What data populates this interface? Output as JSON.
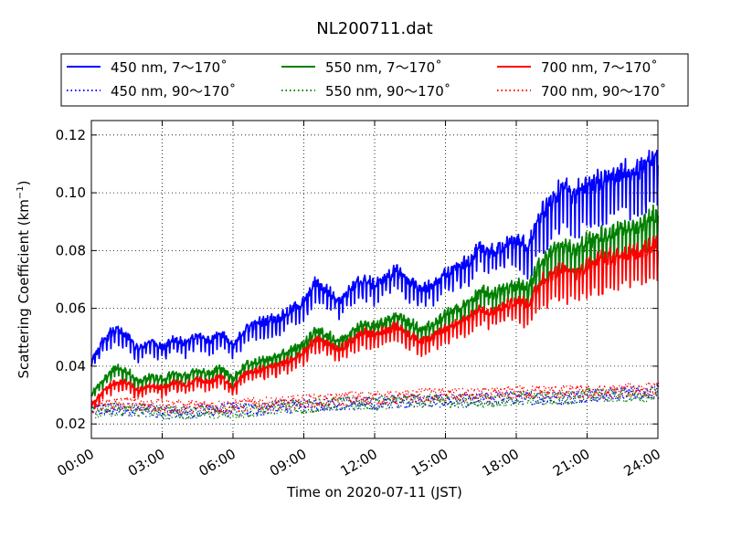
{
  "chart_data": {
    "type": "line",
    "title": "NL200711.dat",
    "xlabel": "Time on 2020-07-11 (JST)",
    "ylabel": "Scattering Coefficient (km",
    "ylabel_sup": "−1",
    "ylabel_close": ")",
    "x_unit": "hours",
    "xlim": [
      0,
      24
    ],
    "ylim": [
      0.015,
      0.125
    ],
    "grid": true,
    "legend_position": "top, above plot, 3 columns",
    "x_ticks": [
      {
        "value": 0,
        "label": "00:00"
      },
      {
        "value": 3,
        "label": "03:00"
      },
      {
        "value": 6,
        "label": "06:00"
      },
      {
        "value": 9,
        "label": "09:00"
      },
      {
        "value": 12,
        "label": "12:00"
      },
      {
        "value": 15,
        "label": "15:00"
      },
      {
        "value": 18,
        "label": "18:00"
      },
      {
        "value": 21,
        "label": "21:00"
      },
      {
        "value": 24,
        "label": "24:00"
      }
    ],
    "y_ticks": [
      {
        "value": 0.02,
        "label": "0.02"
      },
      {
        "value": 0.04,
        "label": "0.04"
      },
      {
        "value": 0.06,
        "label": "0.06"
      },
      {
        "value": 0.08,
        "label": "0.08"
      },
      {
        "value": 0.1,
        "label": "0.10"
      },
      {
        "value": 0.12,
        "label": "0.12"
      }
    ],
    "series": [
      {
        "name": "450 nm, 7～170˚",
        "color": "#0000ff",
        "style": "solid",
        "x": [
          0,
          0.5,
          1,
          1.5,
          2,
          2.5,
          3,
          3.5,
          4,
          4.5,
          5,
          5.5,
          6,
          6.5,
          7,
          7.5,
          8,
          8.5,
          9,
          9.5,
          10,
          10.5,
          11,
          11.5,
          12,
          12.5,
          13,
          13.5,
          14,
          14.5,
          15,
          15.5,
          16,
          16.5,
          17,
          17.5,
          18,
          18.5,
          19,
          19.5,
          20,
          20.5,
          21,
          21.5,
          22,
          22.5,
          23,
          23.5,
          24
        ],
        "y": [
          0.041,
          0.048,
          0.052,
          0.05,
          0.045,
          0.048,
          0.046,
          0.049,
          0.047,
          0.05,
          0.048,
          0.051,
          0.046,
          0.052,
          0.054,
          0.055,
          0.056,
          0.059,
          0.061,
          0.068,
          0.065,
          0.062,
          0.066,
          0.069,
          0.067,
          0.07,
          0.072,
          0.068,
          0.066,
          0.067,
          0.071,
          0.073,
          0.075,
          0.08,
          0.078,
          0.081,
          0.082,
          0.079,
          0.09,
          0.095,
          0.1,
          0.097,
          0.1,
          0.102,
          0.103,
          0.105,
          0.104,
          0.108,
          0.11
        ]
      },
      {
        "name": "550 nm, 7～170˚",
        "color": "#008000",
        "style": "solid",
        "x": [
          0,
          0.5,
          1,
          1.5,
          2,
          2.5,
          3,
          3.5,
          4,
          4.5,
          5,
          5.5,
          6,
          6.5,
          7,
          7.5,
          8,
          8.5,
          9,
          9.5,
          10,
          10.5,
          11,
          11.5,
          12,
          12.5,
          13,
          13.5,
          14,
          14.5,
          15,
          15.5,
          16,
          16.5,
          17,
          17.5,
          18,
          18.5,
          19,
          19.5,
          20,
          20.5,
          21,
          21.5,
          22,
          22.5,
          23,
          23.5,
          24
        ],
        "y": [
          0.03,
          0.035,
          0.039,
          0.038,
          0.034,
          0.036,
          0.035,
          0.037,
          0.036,
          0.038,
          0.037,
          0.039,
          0.035,
          0.04,
          0.041,
          0.042,
          0.043,
          0.045,
          0.047,
          0.052,
          0.05,
          0.048,
          0.051,
          0.054,
          0.053,
          0.055,
          0.057,
          0.054,
          0.052,
          0.054,
          0.057,
          0.059,
          0.061,
          0.065,
          0.064,
          0.066,
          0.067,
          0.065,
          0.074,
          0.078,
          0.08,
          0.078,
          0.081,
          0.083,
          0.084,
          0.086,
          0.085,
          0.088,
          0.09
        ]
      },
      {
        "name": "700 nm, 7～170˚",
        "color": "#ff0000",
        "style": "solid",
        "x": [
          0,
          0.5,
          1,
          1.5,
          2,
          2.5,
          3,
          3.5,
          4,
          4.5,
          5,
          5.5,
          6,
          6.5,
          7,
          7.5,
          8,
          8.5,
          9,
          9.5,
          10,
          10.5,
          11,
          11.5,
          12,
          12.5,
          13,
          13.5,
          14,
          14.5,
          15,
          15.5,
          16,
          16.5,
          17,
          17.5,
          18,
          18.5,
          19,
          19.5,
          20,
          20.5,
          21,
          21.5,
          22,
          22.5,
          23,
          23.5,
          24
        ],
        "y": [
          0.026,
          0.031,
          0.034,
          0.034,
          0.031,
          0.033,
          0.032,
          0.034,
          0.033,
          0.035,
          0.034,
          0.036,
          0.032,
          0.037,
          0.038,
          0.039,
          0.04,
          0.042,
          0.044,
          0.049,
          0.047,
          0.045,
          0.048,
          0.051,
          0.05,
          0.052,
          0.053,
          0.05,
          0.048,
          0.05,
          0.052,
          0.054,
          0.056,
          0.059,
          0.058,
          0.06,
          0.061,
          0.06,
          0.067,
          0.07,
          0.072,
          0.07,
          0.073,
          0.075,
          0.076,
          0.077,
          0.077,
          0.079,
          0.081
        ]
      },
      {
        "name": "450 nm, 90～170˚",
        "color": "#0000ff",
        "style": "dotted",
        "x": [
          0,
          1,
          2,
          3,
          4,
          5,
          6,
          7,
          8,
          9,
          10,
          11,
          12,
          13,
          14,
          15,
          16,
          17,
          18,
          19,
          20,
          21,
          22,
          23,
          24
        ],
        "y": [
          0.025,
          0.025,
          0.025,
          0.024,
          0.024,
          0.025,
          0.025,
          0.025,
          0.026,
          0.026,
          0.027,
          0.027,
          0.027,
          0.028,
          0.028,
          0.028,
          0.028,
          0.029,
          0.029,
          0.029,
          0.029,
          0.03,
          0.03,
          0.031,
          0.031
        ]
      },
      {
        "name": "550 nm, 90～170˚",
        "color": "#008000",
        "style": "dotted",
        "x": [
          0,
          1,
          2,
          3,
          4,
          5,
          6,
          7,
          8,
          9,
          10,
          11,
          12,
          13,
          14,
          15,
          16,
          17,
          18,
          19,
          20,
          21,
          22,
          23,
          24
        ],
        "y": [
          0.024,
          0.025,
          0.025,
          0.024,
          0.024,
          0.024,
          0.024,
          0.025,
          0.026,
          0.026,
          0.027,
          0.027,
          0.027,
          0.028,
          0.028,
          0.028,
          0.028,
          0.028,
          0.029,
          0.029,
          0.029,
          0.03,
          0.03,
          0.03,
          0.03
        ]
      },
      {
        "name": "700 nm, 90～170˚",
        "color": "#ff0000",
        "style": "dotted",
        "x": [
          0,
          1,
          2,
          3,
          4,
          5,
          6,
          7,
          8,
          9,
          10,
          11,
          12,
          13,
          14,
          15,
          16,
          17,
          18,
          19,
          20,
          21,
          22,
          23,
          24
        ],
        "y": [
          0.026,
          0.027,
          0.027,
          0.026,
          0.026,
          0.026,
          0.026,
          0.027,
          0.027,
          0.028,
          0.028,
          0.029,
          0.029,
          0.029,
          0.03,
          0.03,
          0.03,
          0.03,
          0.031,
          0.031,
          0.031,
          0.031,
          0.031,
          0.032,
          0.032
        ]
      }
    ]
  }
}
